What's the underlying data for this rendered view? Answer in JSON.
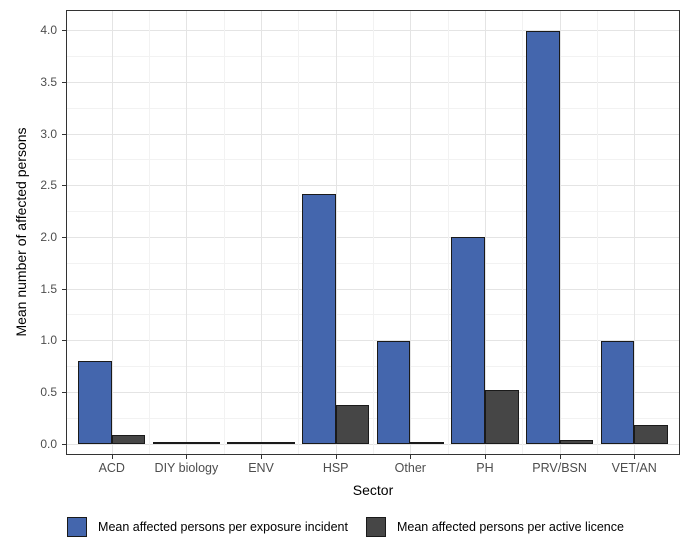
{
  "chart_data": {
    "type": "bar",
    "title": "",
    "xlabel": "Sector",
    "ylabel": "Mean number of affected persons",
    "categories": [
      "ACD",
      "DIY biology",
      "ENV",
      "HSP",
      "Other",
      "PH",
      "PRV/BSN",
      "VET/AN"
    ],
    "series": [
      {
        "name": "Mean affected persons per exposure incident",
        "color": "#4466ad",
        "values": [
          0.8,
          0,
          0,
          2.42,
          1.0,
          2.0,
          4.0,
          1.0
        ]
      },
      {
        "name": "Mean affected persons per active licence",
        "color": "#464646",
        "values": [
          0.09,
          0,
          0,
          0.38,
          0.02,
          0.52,
          0.04,
          0.18
        ]
      }
    ],
    "ylim": [
      0,
      4.2
    ],
    "yticks": [
      "0.0",
      "0.5",
      "1.0",
      "1.5",
      "2.0",
      "2.5",
      "3.0",
      "3.5",
      "4.0"
    ],
    "grid": "major and minor, light gray, horizontal and vertical",
    "legend_position": "bottom",
    "bar_outline_color": "#1a1a1a",
    "panel_border_color": "#333333"
  }
}
